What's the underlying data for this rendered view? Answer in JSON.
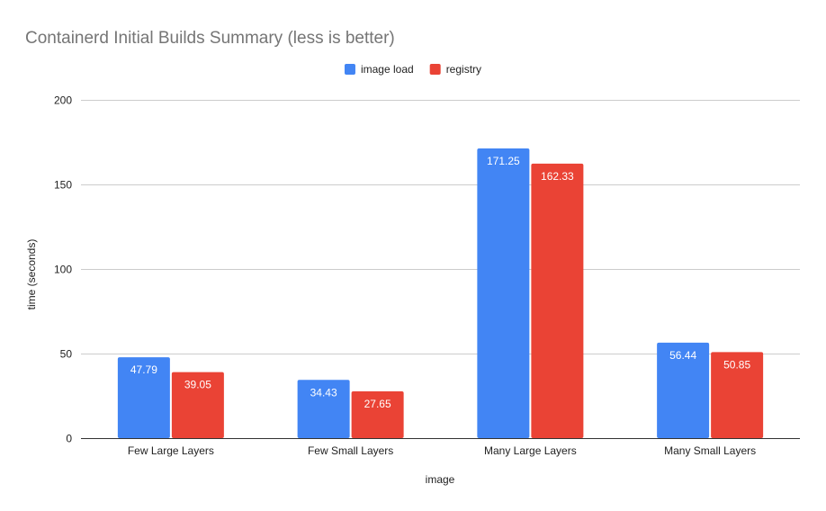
{
  "chart_data": {
    "type": "bar",
    "title": "Containerd Initial Builds Summary (less is better)",
    "xlabel": "image",
    "ylabel": "time (seconds)",
    "categories": [
      "Few Large Layers",
      "Few Small Layers",
      "Many Large Layers",
      "Many Small Layers"
    ],
    "series": [
      {
        "name": "image load",
        "color": "#4285f4",
        "values": [
          47.79,
          34.43,
          171.25,
          56.44
        ],
        "labels": [
          "47.79",
          "34.43",
          "171.25",
          "56.44"
        ]
      },
      {
        "name": "registry",
        "color": "#ea4335",
        "values": [
          39.05,
          27.65,
          162.33,
          50.85
        ],
        "labels": [
          "39.05",
          "27.65",
          "162.33",
          "50.85"
        ]
      }
    ],
    "ylim": [
      0,
      200
    ],
    "yticks": [
      0,
      50,
      100,
      150,
      200
    ],
    "ytick_labels": [
      "0",
      "50",
      "100",
      "150",
      "200"
    ],
    "grid": true,
    "legend_position": "top-center"
  }
}
